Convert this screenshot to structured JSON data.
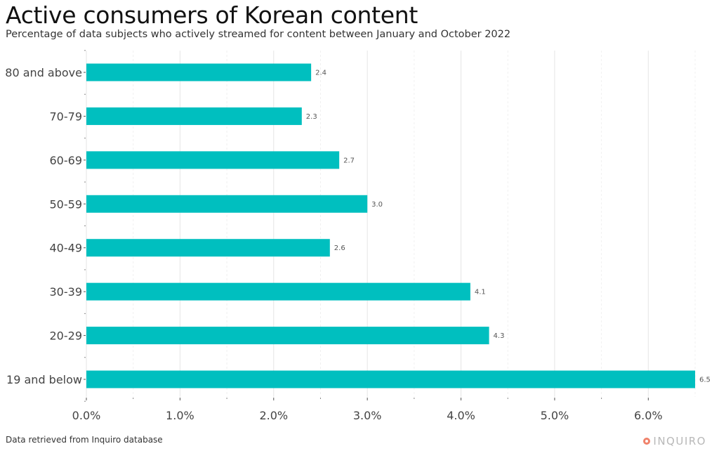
{
  "title": "Active consumers of Korean content",
  "subtitle": "Percentage of data subjects who actively streamed for content between January and October 2022",
  "caption": "Data retrieved from Inquiro database",
  "logo": {
    "text": "INQUIRO",
    "icon": "inquiro-logo-icon"
  },
  "colors": {
    "bar": "#00bfbf",
    "grid": "#e6e6e6",
    "label": "#555555",
    "tick": "#444444"
  },
  "chart_data": {
    "type": "bar",
    "orientation": "horizontal",
    "categories": [
      "80 and above",
      "70-79",
      "60-69",
      "50-59",
      "40-49",
      "30-39",
      "20-29",
      "19 and below"
    ],
    "values": [
      2.4,
      2.3,
      2.7,
      3.0,
      2.6,
      4.1,
      4.3,
      6.5
    ],
    "data_labels": [
      "2.4",
      "2.3",
      "2.7",
      "3.0",
      "2.6",
      "4.1",
      "4.3",
      "6.5"
    ],
    "xlim": [
      0,
      6.5
    ],
    "xticks": [
      0,
      1,
      2,
      3,
      4,
      5,
      6
    ],
    "xtick_labels": [
      "0.0%",
      "1.0%",
      "2.0%",
      "3.0%",
      "4.0%",
      "5.0%",
      "6.0%"
    ],
    "xlabel": "",
    "ylabel": "",
    "grid": true,
    "legend": false
  }
}
